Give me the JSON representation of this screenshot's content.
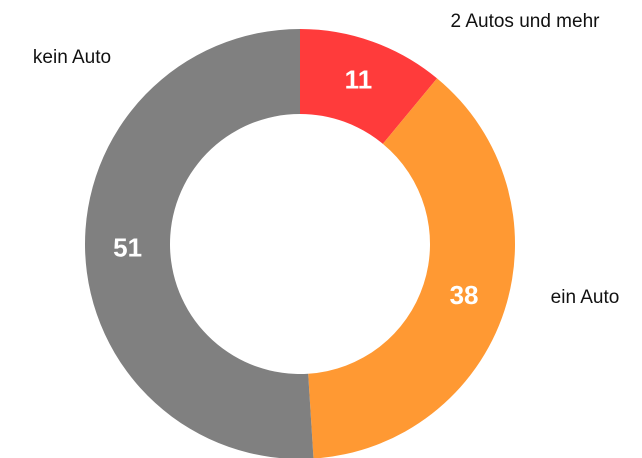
{
  "chart_data": {
    "type": "donut",
    "categories": [
      "2 Autos und mehr",
      "ein Auto",
      "kein Auto"
    ],
    "values": [
      11,
      38,
      51
    ],
    "colors": [
      "#ff3b3b",
      "#ff9933",
      "#808080"
    ]
  }
}
